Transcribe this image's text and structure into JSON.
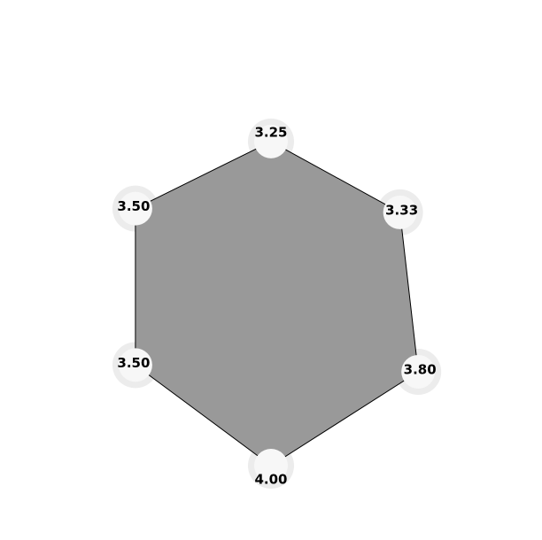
{
  "chart_data": {
    "type": "radar",
    "vertex_labels": [
      "3.25",
      "3.33",
      "3.80",
      "4.00",
      "3.50",
      "3.50"
    ],
    "values": [
      3.25,
      3.33,
      3.8,
      4.0,
      3.5,
      3.5
    ],
    "fill_color": "#999999",
    "edge_color": "#000000",
    "marker_color": "#ececec"
  }
}
